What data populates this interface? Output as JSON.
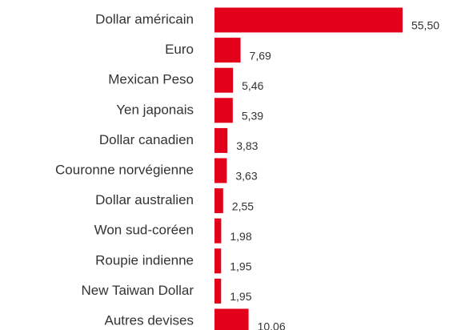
{
  "chart_data": {
    "type": "bar",
    "orientation": "horizontal",
    "color": "#e2001a",
    "categories": [
      "Dollar américain",
      "Euro",
      "Mexican Peso",
      "Yen japonais",
      "Dollar canadien",
      "Couronne norvégienne",
      "Dollar australien",
      "Won sud-coréen",
      "Roupie indienne",
      "New Taiwan Dollar",
      "Autres devises"
    ],
    "values": [
      55.5,
      7.69,
      5.46,
      5.39,
      3.83,
      3.63,
      2.55,
      1.98,
      1.95,
      1.95,
      10.06
    ],
    "value_labels": [
      "55,50",
      "7,69",
      "5,46",
      "5,39",
      "3,83",
      "3,63",
      "2,55",
      "1,98",
      "1,95",
      "1,95",
      "10,06"
    ]
  }
}
